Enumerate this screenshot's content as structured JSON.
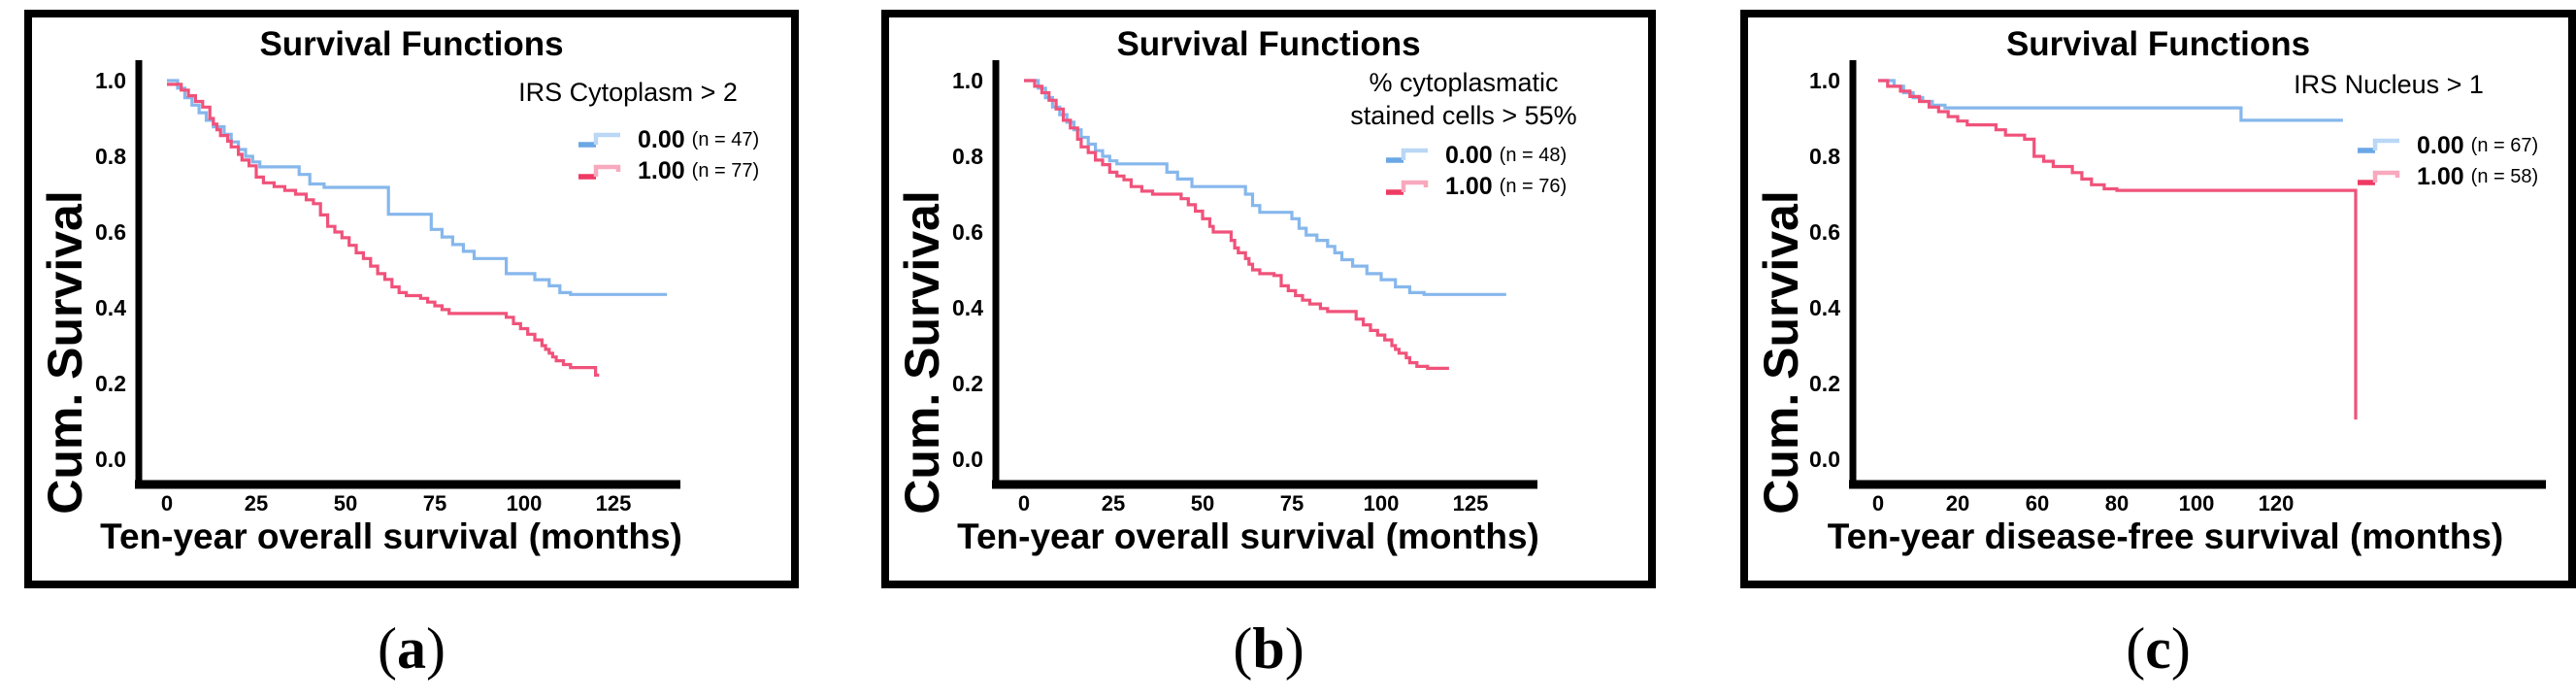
{
  "figure_background": "#ffffff",
  "colors": {
    "axis": "#000000",
    "blue_curve": "#86B7EC",
    "pink_curve": "#F0527A",
    "blue_key_dark": "#6AA7E5",
    "blue_key_light": "#BAD7F6",
    "pink_key_dark": "#EE3A64",
    "pink_key_light": "#F8A9BE"
  },
  "panels": [
    {
      "id": "a",
      "caption": {
        "open": "(",
        "letter": "a",
        "close": ")"
      },
      "title": "Survival Functions",
      "ylabel": "Cum. Survival",
      "xlabel": "Ten-year overall survival (months)",
      "y_ticks": [
        "1.0",
        "0.8",
        "0.6",
        "0.4",
        "0.2",
        "0.0"
      ],
      "x_ticks": [
        "0",
        "25",
        "50",
        "75",
        "100",
        "125"
      ],
      "legend": {
        "title_lines": [
          "IRS Cytoplasm > 2"
        ],
        "entries": [
          {
            "value": "0.00",
            "n_label": "(n = 47)",
            "color": "#6AA7E5",
            "light": "#BAD7F6"
          },
          {
            "value": "1.00",
            "n_label": "(n = 77)",
            "color": "#EE3A64",
            "light": "#F8A9BE"
          }
        ]
      }
    },
    {
      "id": "b",
      "caption": {
        "open": "(",
        "letter": "b",
        "close": ")"
      },
      "title": "Survival Functions",
      "ylabel": "Cum. Survival",
      "xlabel": "Ten-year overall survival (months)",
      "y_ticks": [
        "1.0",
        "0.8",
        "0.6",
        "0.4",
        "0.2",
        "0.0"
      ],
      "x_ticks": [
        "0",
        "25",
        "50",
        "75",
        "100",
        "125"
      ],
      "legend": {
        "title_lines": [
          "% cytoplasmatic",
          "stained cells > 55%"
        ],
        "entries": [
          {
            "value": "0.00",
            "n_label": "(n = 48)",
            "color": "#6AA7E5",
            "light": "#BAD7F6"
          },
          {
            "value": "1.00",
            "n_label": "(n = 76)",
            "color": "#EE3A64",
            "light": "#F8A9BE"
          }
        ]
      }
    },
    {
      "id": "c",
      "caption": {
        "open": "(",
        "letter": "c",
        "close": ")"
      },
      "title": "Survival Functions",
      "ylabel": "Cum. Survival",
      "xlabel": "Ten-year disease-free survival (months)",
      "y_ticks": [
        "1.0",
        "0.8",
        "0.6",
        "0.4",
        "0.2",
        "0.0"
      ],
      "x_ticks": [
        "0",
        "20",
        "60",
        "80",
        "100",
        "120"
      ],
      "legend": {
        "title_lines": [
          "IRS Nucleus > 1"
        ],
        "entries": [
          {
            "value": "0.00",
            "n_label": "(n = 67)",
            "color": "#6AA7E5",
            "light": "#BAD7F6"
          },
          {
            "value": "1.00",
            "n_label": "(n = 58)",
            "color": "#EE3A64",
            "light": "#F8A9BE"
          }
        ]
      }
    }
  ],
  "chart_data": [
    {
      "panel": "a",
      "type": "line",
      "subtype": "kaplan-meier-step",
      "title": "Survival Functions",
      "xlabel": "Ten-year overall survival (months)",
      "ylabel": "Cum. Survival",
      "legend_title": "IRS Cytoplasm > 2",
      "x_tick_values": [
        0,
        25,
        50,
        75,
        100,
        125
      ],
      "ylim": [
        0.0,
        1.0
      ],
      "grid": false,
      "legend_position": "upper right",
      "series": [
        {
          "name": "0.00",
          "n": 47,
          "color": "#86B7EC",
          "end": 140,
          "points": [
            [
              0,
              1.0
            ],
            [
              3,
              0.98
            ],
            [
              5,
              0.955
            ],
            [
              7,
              0.935
            ],
            [
              9,
              0.915
            ],
            [
              11,
              0.895
            ],
            [
              13,
              0.878
            ],
            [
              16,
              0.858
            ],
            [
              18,
              0.838
            ],
            [
              20,
              0.818
            ],
            [
              22,
              0.8
            ],
            [
              24,
              0.785
            ],
            [
              26,
              0.772
            ],
            [
              37,
              0.752
            ],
            [
              40,
              0.727
            ],
            [
              44,
              0.718
            ],
            [
              62,
              0.647
            ],
            [
              74,
              0.607
            ],
            [
              77,
              0.587
            ],
            [
              80,
              0.567
            ],
            [
              83,
              0.549
            ],
            [
              86,
              0.53
            ],
            [
              95,
              0.49
            ],
            [
              103,
              0.474
            ],
            [
              107,
              0.458
            ],
            [
              110,
              0.44
            ],
            [
              113,
              0.435
            ]
          ]
        },
        {
          "name": "1.00",
          "n": 77,
          "color": "#F0527A",
          "end": 121,
          "points": [
            [
              0,
              0.99
            ],
            [
              4,
              0.975
            ],
            [
              6,
              0.96
            ],
            [
              8,
              0.945
            ],
            [
              10,
              0.93
            ],
            [
              12,
              0.9
            ],
            [
              13,
              0.885
            ],
            [
              14,
              0.87
            ],
            [
              15,
              0.855
            ],
            [
              17,
              0.84
            ],
            [
              18,
              0.825
            ],
            [
              20,
              0.805
            ],
            [
              21,
              0.79
            ],
            [
              23,
              0.775
            ],
            [
              25,
              0.745
            ],
            [
              27,
              0.73
            ],
            [
              30,
              0.72
            ],
            [
              33,
              0.71
            ],
            [
              36,
              0.7
            ],
            [
              39,
              0.685
            ],
            [
              41,
              0.675
            ],
            [
              43,
              0.645
            ],
            [
              45,
              0.615
            ],
            [
              47,
              0.6
            ],
            [
              49,
              0.585
            ],
            [
              51,
              0.565
            ],
            [
              53,
              0.545
            ],
            [
              55,
              0.53
            ],
            [
              57,
              0.51
            ],
            [
              59,
              0.49
            ],
            [
              61,
              0.475
            ],
            [
              63,
              0.455
            ],
            [
              65,
              0.44
            ],
            [
              67,
              0.432
            ],
            [
              71,
              0.425
            ],
            [
              73,
              0.415
            ],
            [
              75,
              0.405
            ],
            [
              77,
              0.395
            ],
            [
              79,
              0.385
            ],
            [
              95,
              0.375
            ],
            [
              97,
              0.358
            ],
            [
              99,
              0.345
            ],
            [
              101,
              0.33
            ],
            [
              103,
              0.315
            ],
            [
              105,
              0.3
            ],
            [
              106,
              0.29
            ],
            [
              107,
              0.28
            ],
            [
              108,
              0.27
            ],
            [
              109,
              0.26
            ],
            [
              111,
              0.25
            ],
            [
              113,
              0.242
            ],
            [
              120,
              0.222
            ]
          ]
        }
      ]
    },
    {
      "panel": "b",
      "type": "line",
      "subtype": "kaplan-meier-step",
      "title": "Survival Functions",
      "xlabel": "Ten-year overall survival (months)",
      "ylabel": "Cum. Survival",
      "legend_title": "% cytoplasmatic stained cells > 55%",
      "x_tick_values": [
        0,
        25,
        50,
        75,
        100,
        125
      ],
      "ylim": [
        0.0,
        1.0
      ],
      "grid": false,
      "legend_position": "upper right",
      "series": [
        {
          "name": "0.00",
          "n": 48,
          "color": "#86B7EC",
          "end": 135,
          "points": [
            [
              0,
              1.0
            ],
            [
              4,
              0.98
            ],
            [
              6,
              0.955
            ],
            [
              8,
              0.93
            ],
            [
              10,
              0.91
            ],
            [
              12,
              0.89
            ],
            [
              14,
              0.87
            ],
            [
              16,
              0.85
            ],
            [
              18,
              0.832
            ],
            [
              20,
              0.815
            ],
            [
              22,
              0.8
            ],
            [
              24,
              0.788
            ],
            [
              26,
              0.78
            ],
            [
              40,
              0.758
            ],
            [
              43,
              0.74
            ],
            [
              47,
              0.72
            ],
            [
              62,
              0.7
            ],
            [
              64,
              0.67
            ],
            [
              66,
              0.652
            ],
            [
              75,
              0.635
            ],
            [
              77,
              0.61
            ],
            [
              79,
              0.592
            ],
            [
              82,
              0.578
            ],
            [
              85,
              0.562
            ],
            [
              87,
              0.545
            ],
            [
              89,
              0.527
            ],
            [
              92,
              0.51
            ],
            [
              96,
              0.49
            ],
            [
              100,
              0.474
            ],
            [
              104,
              0.455
            ],
            [
              108,
              0.44
            ],
            [
              112,
              0.435
            ]
          ]
        },
        {
          "name": "1.00",
          "n": 76,
          "color": "#F0527A",
          "end": 119,
          "points": [
            [
              0,
              1.0
            ],
            [
              3,
              0.985
            ],
            [
              5,
              0.968
            ],
            [
              7,
              0.948
            ],
            [
              9,
              0.925
            ],
            [
              11,
              0.895
            ],
            [
              13,
              0.875
            ],
            [
              15,
              0.845
            ],
            [
              16,
              0.825
            ],
            [
              18,
              0.81
            ],
            [
              20,
              0.79
            ],
            [
              22,
              0.778
            ],
            [
              24,
              0.758
            ],
            [
              26,
              0.748
            ],
            [
              28,
              0.738
            ],
            [
              30,
              0.72
            ],
            [
              33,
              0.708
            ],
            [
              36,
              0.7
            ],
            [
              44,
              0.688
            ],
            [
              46,
              0.672
            ],
            [
              48,
              0.655
            ],
            [
              50,
              0.635
            ],
            [
              52,
              0.615
            ],
            [
              53,
              0.6
            ],
            [
              58,
              0.578
            ],
            [
              59,
              0.558
            ],
            [
              60,
              0.545
            ],
            [
              62,
              0.53
            ],
            [
              63,
              0.515
            ],
            [
              64,
              0.5
            ],
            [
              66,
              0.49
            ],
            [
              70,
              0.485
            ],
            [
              72,
              0.458
            ],
            [
              74,
              0.445
            ],
            [
              76,
              0.432
            ],
            [
              78,
              0.42
            ],
            [
              80,
              0.41
            ],
            [
              83,
              0.398
            ],
            [
              85,
              0.39
            ],
            [
              93,
              0.37
            ],
            [
              95,
              0.355
            ],
            [
              97,
              0.34
            ],
            [
              99,
              0.328
            ],
            [
              101,
              0.315
            ],
            [
              103,
              0.3
            ],
            [
              104,
              0.29
            ],
            [
              105,
              0.28
            ],
            [
              107,
              0.268
            ],
            [
              108,
              0.255
            ],
            [
              110,
              0.245
            ],
            [
              113,
              0.24
            ]
          ]
        }
      ]
    },
    {
      "panel": "c",
      "type": "line",
      "subtype": "kaplan-meier-step",
      "title": "Survival Functions",
      "xlabel": "Ten-year disease-free survival (months)",
      "ylabel": "Cum. Survival",
      "legend_title": "IRS Nucleus > 1",
      "x_tick_values": [
        0,
        20,
        60,
        80,
        100,
        120
      ],
      "ylim": [
        0.0,
        1.0
      ],
      "grid": false,
      "legend_position": "upper right",
      "series": [
        {
          "name": "0.00",
          "n": 67,
          "color": "#86B7EC",
          "end": 146,
          "points": [
            [
              0,
              1.0
            ],
            [
              5,
              0.985
            ],
            [
              8,
              0.968
            ],
            [
              11,
              0.955
            ],
            [
              14,
              0.945
            ],
            [
              17,
              0.935
            ],
            [
              21,
              0.928
            ],
            [
              114,
              0.895
            ]
          ]
        },
        {
          "name": "1.00",
          "n": 58,
          "color": "#F0527A",
          "end": 150,
          "points": [
            [
              0,
              1.0
            ],
            [
              3,
              0.985
            ],
            [
              7,
              0.972
            ],
            [
              10,
              0.958
            ],
            [
              13,
              0.945
            ],
            [
              16,
              0.93
            ],
            [
              19,
              0.918
            ],
            [
              22,
              0.905
            ],
            [
              25,
              0.893
            ],
            [
              28,
              0.883
            ],
            [
              37,
              0.87
            ],
            [
              40,
              0.856
            ],
            [
              46,
              0.845
            ],
            [
              49,
              0.8
            ],
            [
              52,
              0.787
            ],
            [
              55,
              0.773
            ],
            [
              61,
              0.757
            ],
            [
              64,
              0.74
            ],
            [
              67,
              0.725
            ],
            [
              71,
              0.714
            ],
            [
              75,
              0.71
            ],
            [
              150,
              0.105
            ]
          ]
        }
      ]
    }
  ]
}
